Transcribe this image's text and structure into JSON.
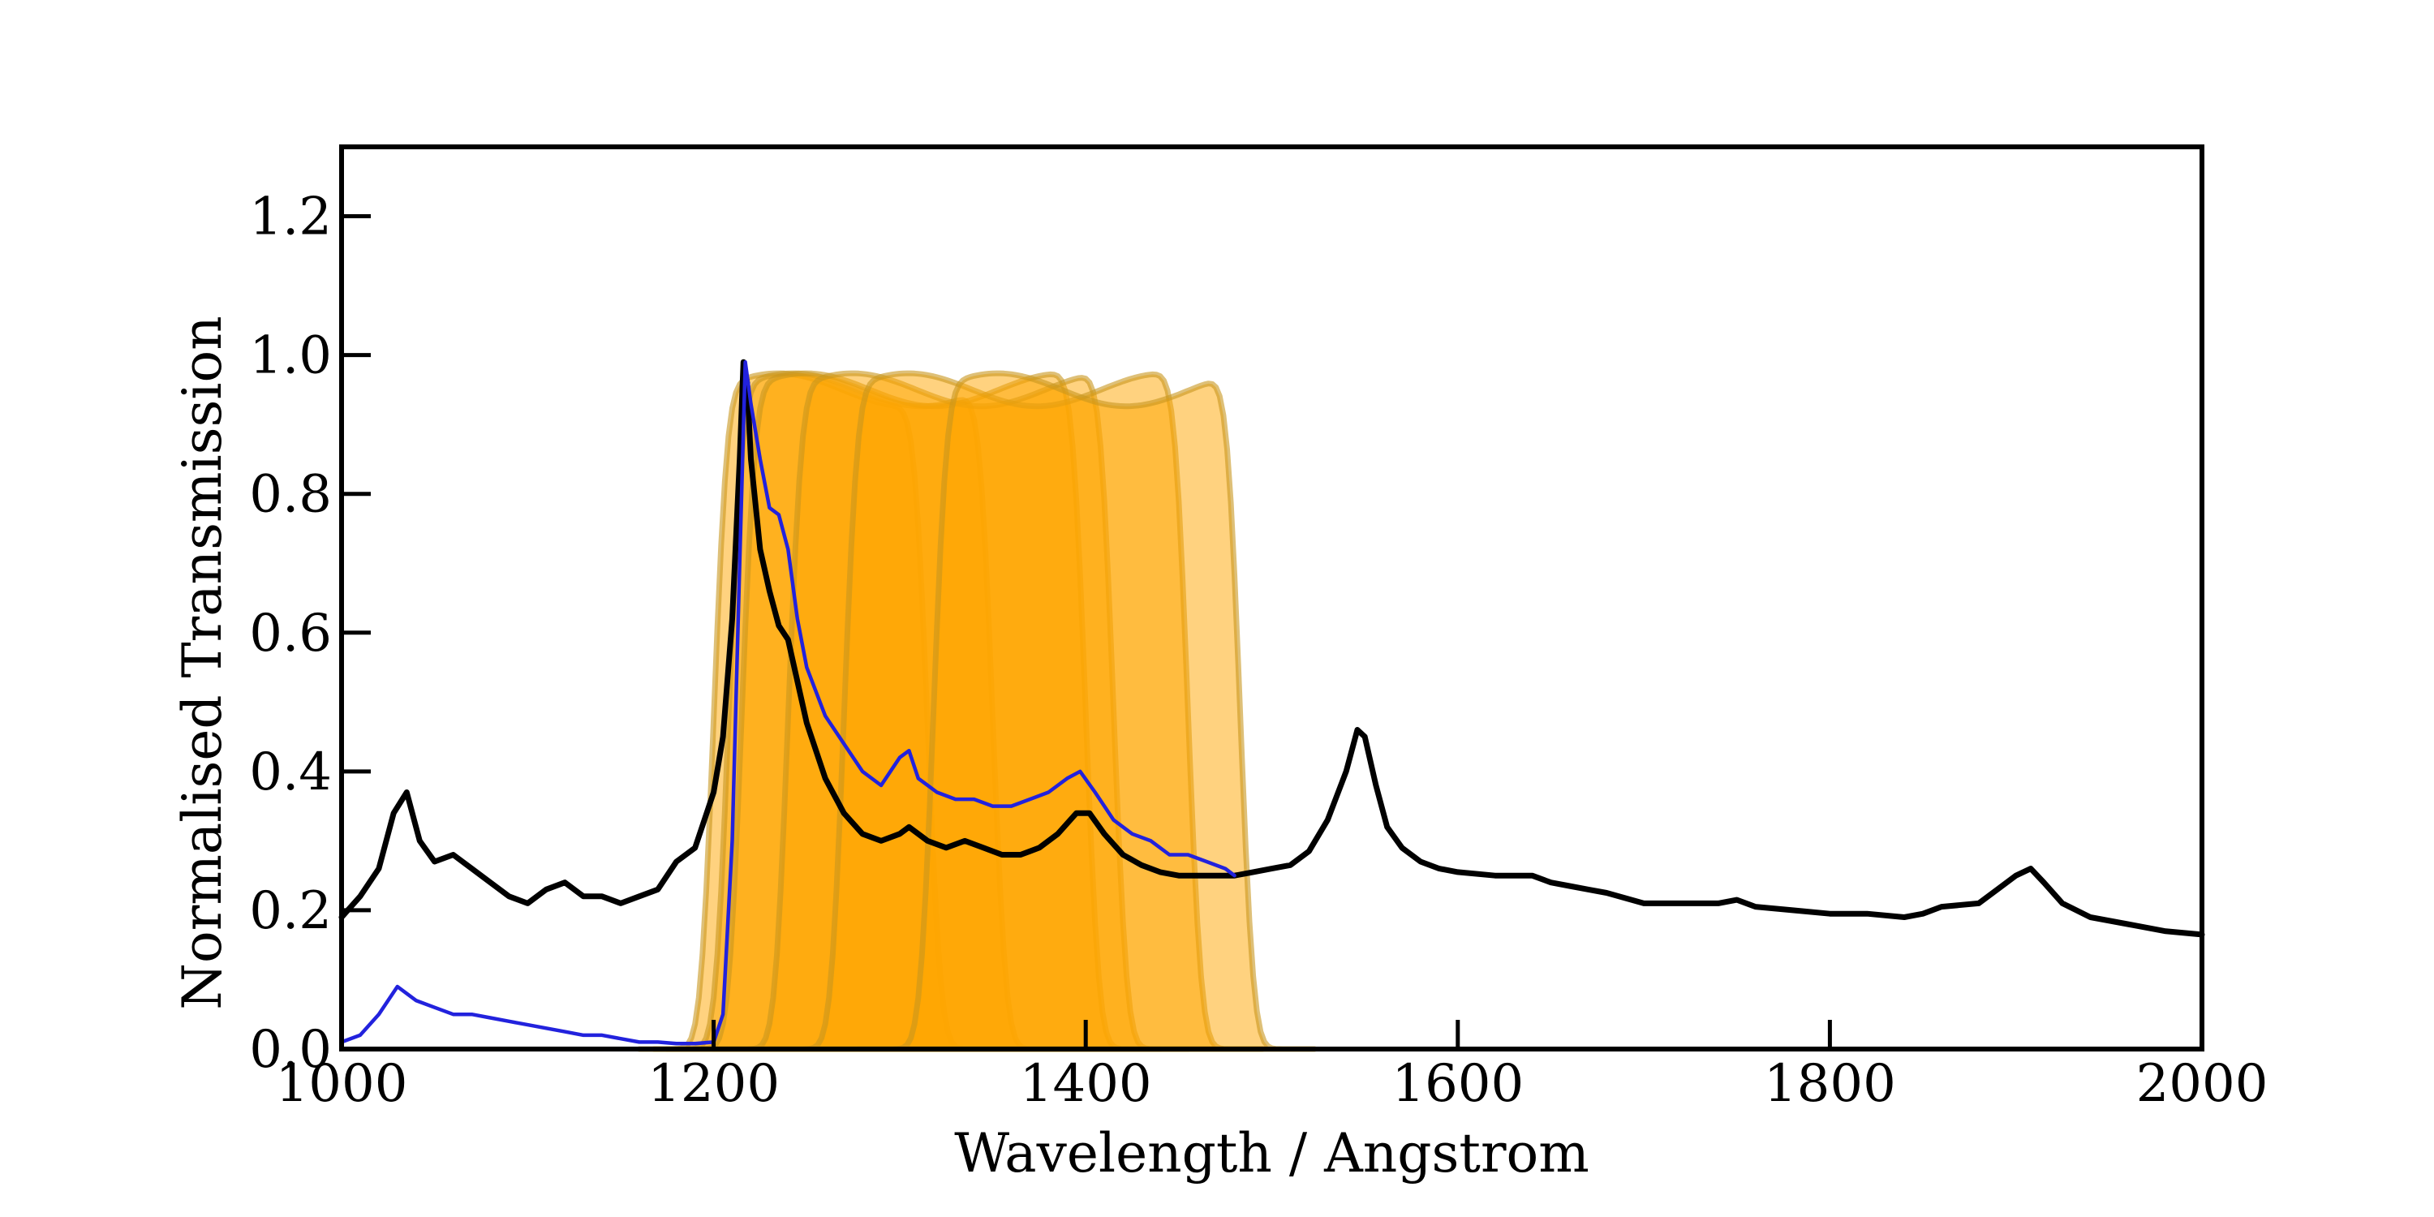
{
  "chart_data": {
    "type": "line",
    "title": "",
    "xlabel": "Wavelength / Angstrom",
    "ylabel": "Normalised Transmission",
    "xlim": [
      1000,
      2000
    ],
    "ylim": [
      0,
      1.3
    ],
    "x_ticks": [
      1000,
      1200,
      1400,
      1600,
      1800,
      2000
    ],
    "x_tick_labels": [
      "1000",
      "1200",
      "1400",
      "1600",
      "1800",
      "2000"
    ],
    "y_ticks": [
      0.0,
      0.2,
      0.4,
      0.6,
      0.8,
      1.0,
      1.2
    ],
    "y_tick_labels": [
      "0.0",
      "0.2",
      "0.4",
      "0.6",
      "0.8",
      "1.0",
      "1.2"
    ],
    "grid": false,
    "legend": "none",
    "filters": {
      "color": "#FFA500",
      "edge_color": "#C8961E",
      "fill_opacity": 0.5,
      "peak_transmission": 0.95,
      "bands": [
        {
          "blue_edge": 1200,
          "red_edge": 1315
        },
        {
          "blue_edge": 1208,
          "red_edge": 1350
        },
        {
          "blue_edge": 1215,
          "red_edge": 1400
        },
        {
          "blue_edge": 1240,
          "red_edge": 1415
        },
        {
          "blue_edge": 1270,
          "red_edge": 1455
        },
        {
          "blue_edge": 1318,
          "red_edge": 1483
        }
      ]
    },
    "series": [
      {
        "color": "#000000",
        "points": [
          [
            1000,
            0.19
          ],
          [
            1010,
            0.22
          ],
          [
            1020,
            0.26
          ],
          [
            1028,
            0.34
          ],
          [
            1035,
            0.37
          ],
          [
            1042,
            0.3
          ],
          [
            1050,
            0.27
          ],
          [
            1060,
            0.28
          ],
          [
            1070,
            0.26
          ],
          [
            1080,
            0.24
          ],
          [
            1090,
            0.22
          ],
          [
            1100,
            0.21
          ],
          [
            1110,
            0.23
          ],
          [
            1120,
            0.24
          ],
          [
            1130,
            0.22
          ],
          [
            1140,
            0.22
          ],
          [
            1150,
            0.21
          ],
          [
            1160,
            0.22
          ],
          [
            1170,
            0.23
          ],
          [
            1180,
            0.27
          ],
          [
            1190,
            0.29
          ],
          [
            1200,
            0.37
          ],
          [
            1205,
            0.45
          ],
          [
            1210,
            0.62
          ],
          [
            1214,
            0.85
          ],
          [
            1216,
            0.99
          ],
          [
            1218,
            0.96
          ],
          [
            1220,
            0.85
          ],
          [
            1225,
            0.72
          ],
          [
            1230,
            0.66
          ],
          [
            1235,
            0.61
          ],
          [
            1240,
            0.59
          ],
          [
            1250,
            0.47
          ],
          [
            1260,
            0.39
          ],
          [
            1270,
            0.34
          ],
          [
            1280,
            0.31
          ],
          [
            1290,
            0.3
          ],
          [
            1300,
            0.31
          ],
          [
            1305,
            0.32
          ],
          [
            1315,
            0.3
          ],
          [
            1325,
            0.29
          ],
          [
            1335,
            0.3
          ],
          [
            1345,
            0.29
          ],
          [
            1355,
            0.28
          ],
          [
            1365,
            0.28
          ],
          [
            1375,
            0.29
          ],
          [
            1385,
            0.31
          ],
          [
            1395,
            0.34
          ],
          [
            1402,
            0.34
          ],
          [
            1410,
            0.31
          ],
          [
            1420,
            0.28
          ],
          [
            1430,
            0.265
          ],
          [
            1440,
            0.255
          ],
          [
            1450,
            0.25
          ],
          [
            1460,
            0.25
          ],
          [
            1470,
            0.25
          ],
          [
            1480,
            0.25
          ],
          [
            1490,
            0.255
          ],
          [
            1500,
            0.26
          ],
          [
            1510,
            0.265
          ],
          [
            1520,
            0.285
          ],
          [
            1530,
            0.33
          ],
          [
            1540,
            0.4
          ],
          [
            1546,
            0.46
          ],
          [
            1550,
            0.45
          ],
          [
            1556,
            0.38
          ],
          [
            1562,
            0.32
          ],
          [
            1570,
            0.29
          ],
          [
            1580,
            0.27
          ],
          [
            1590,
            0.26
          ],
          [
            1600,
            0.255
          ],
          [
            1620,
            0.25
          ],
          [
            1630,
            0.25
          ],
          [
            1640,
            0.25
          ],
          [
            1650,
            0.24
          ],
          [
            1660,
            0.235
          ],
          [
            1670,
            0.23
          ],
          [
            1680,
            0.225
          ],
          [
            1700,
            0.21
          ],
          [
            1720,
            0.21
          ],
          [
            1740,
            0.21
          ],
          [
            1750,
            0.215
          ],
          [
            1760,
            0.205
          ],
          [
            1780,
            0.2
          ],
          [
            1800,
            0.195
          ],
          [
            1820,
            0.195
          ],
          [
            1840,
            0.19
          ],
          [
            1850,
            0.195
          ],
          [
            1860,
            0.205
          ],
          [
            1880,
            0.21
          ],
          [
            1890,
            0.23
          ],
          [
            1900,
            0.25
          ],
          [
            1908,
            0.26
          ],
          [
            1915,
            0.24
          ],
          [
            1925,
            0.21
          ],
          [
            1940,
            0.19
          ],
          [
            1960,
            0.18
          ],
          [
            1980,
            0.17
          ],
          [
            2000,
            0.165
          ]
        ]
      },
      {
        "color": "#2222DD",
        "points": [
          [
            1000,
            0.01
          ],
          [
            1010,
            0.02
          ],
          [
            1020,
            0.05
          ],
          [
            1030,
            0.09
          ],
          [
            1035,
            0.08
          ],
          [
            1040,
            0.07
          ],
          [
            1050,
            0.06
          ],
          [
            1060,
            0.05
          ],
          [
            1070,
            0.05
          ],
          [
            1080,
            0.045
          ],
          [
            1090,
            0.04
          ],
          [
            1100,
            0.035
          ],
          [
            1110,
            0.03
          ],
          [
            1120,
            0.025
          ],
          [
            1130,
            0.02
          ],
          [
            1140,
            0.02
          ],
          [
            1150,
            0.015
          ],
          [
            1160,
            0.01
          ],
          [
            1170,
            0.01
          ],
          [
            1180,
            0.008
          ],
          [
            1190,
            0.008
          ],
          [
            1200,
            0.01
          ],
          [
            1205,
            0.05
          ],
          [
            1210,
            0.3
          ],
          [
            1214,
            0.7
          ],
          [
            1217,
            0.99
          ],
          [
            1220,
            0.93
          ],
          [
            1225,
            0.85
          ],
          [
            1230,
            0.78
          ],
          [
            1235,
            0.77
          ],
          [
            1240,
            0.72
          ],
          [
            1245,
            0.62
          ],
          [
            1250,
            0.55
          ],
          [
            1260,
            0.48
          ],
          [
            1270,
            0.44
          ],
          [
            1280,
            0.4
          ],
          [
            1290,
            0.38
          ],
          [
            1300,
            0.42
          ],
          [
            1305,
            0.43
          ],
          [
            1310,
            0.39
          ],
          [
            1320,
            0.37
          ],
          [
            1330,
            0.36
          ],
          [
            1340,
            0.36
          ],
          [
            1350,
            0.35
          ],
          [
            1360,
            0.35
          ],
          [
            1370,
            0.36
          ],
          [
            1380,
            0.37
          ],
          [
            1390,
            0.39
          ],
          [
            1397,
            0.4
          ],
          [
            1405,
            0.37
          ],
          [
            1415,
            0.33
          ],
          [
            1425,
            0.31
          ],
          [
            1435,
            0.3
          ],
          [
            1445,
            0.28
          ],
          [
            1455,
            0.28
          ],
          [
            1465,
            0.27
          ],
          [
            1475,
            0.26
          ],
          [
            1480,
            0.25
          ]
        ]
      }
    ]
  }
}
